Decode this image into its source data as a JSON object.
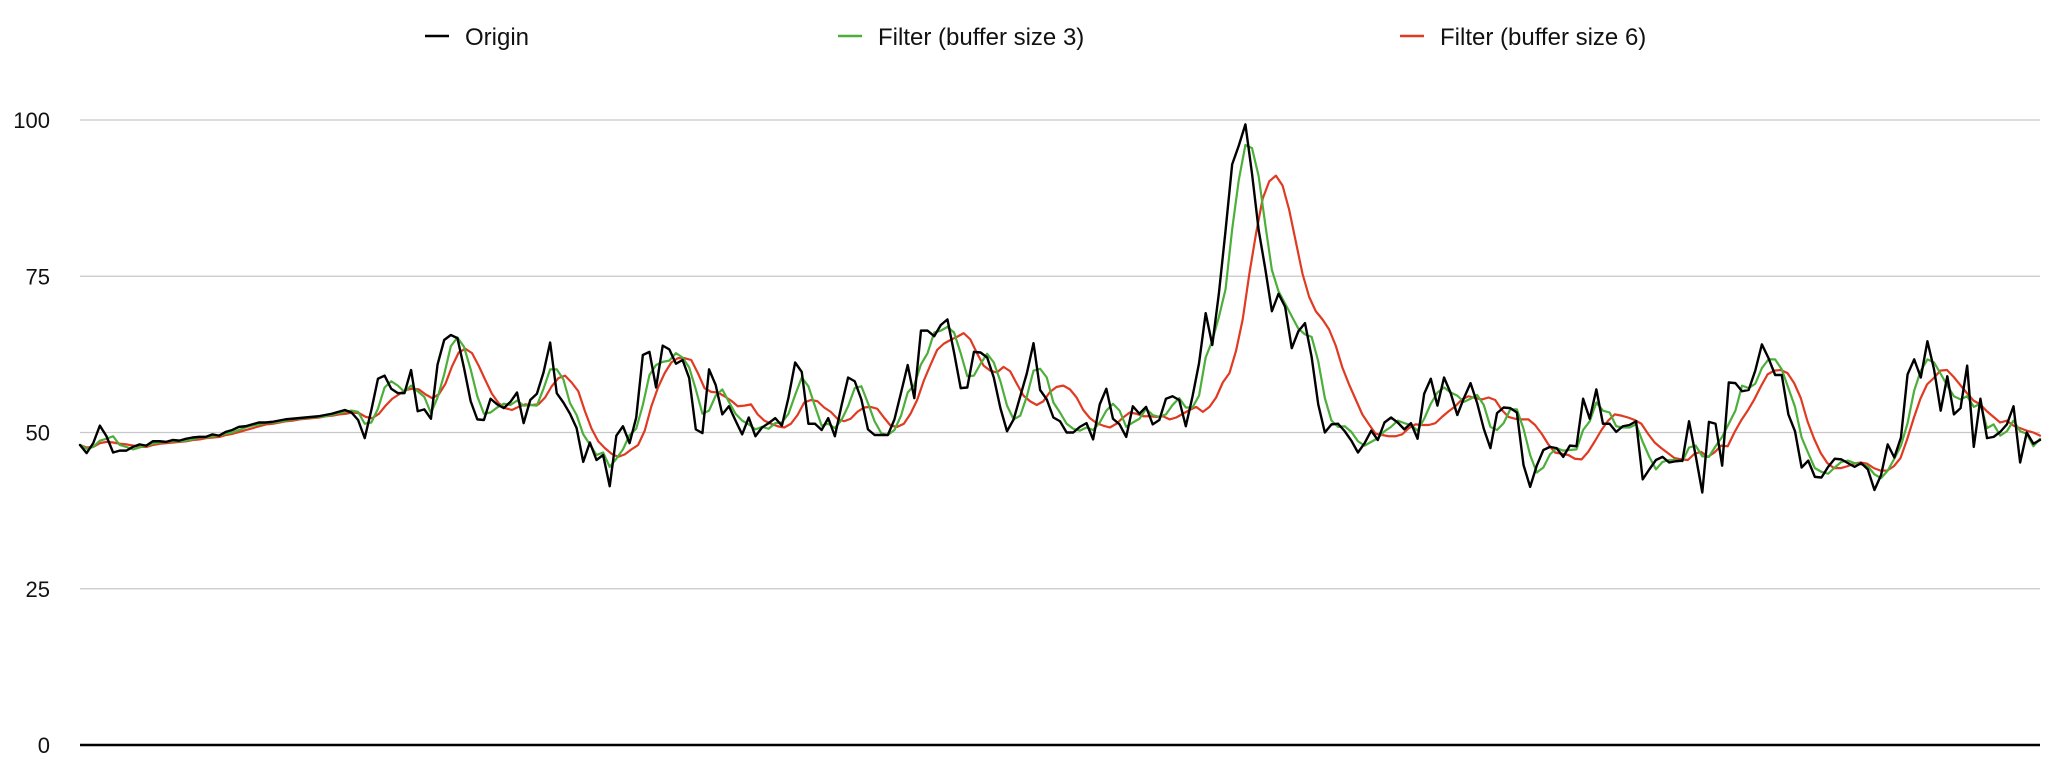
{
  "chart_data": {
    "type": "line",
    "title": "",
    "xlabel": "",
    "ylabel": "",
    "ylim": [
      0,
      100
    ],
    "yticks": [
      0,
      25,
      50,
      75,
      100
    ],
    "grid": true,
    "legend_position": "top",
    "series": [
      {
        "name": "Origin",
        "color": "#000000",
        "values": [
          48.0,
          46.7,
          48.3,
          51.1,
          49.4,
          46.8,
          47.1,
          47.1,
          47.7,
          48.1,
          47.9,
          48.6,
          48.6,
          48.5,
          48.8,
          48.7,
          49.0,
          49.2,
          49.3,
          49.3,
          49.7,
          49.5,
          50.1,
          50.4,
          50.9,
          51.0,
          51.3,
          51.6,
          51.6,
          51.7,
          51.9,
          52.1,
          52.2,
          52.3,
          52.4,
          52.5,
          52.6,
          52.8,
          53.0,
          53.3,
          53.6,
          53.2,
          52.0,
          49.1,
          53.6,
          58.6,
          59.1,
          57.0,
          56.3,
          56.3,
          60.0,
          53.4,
          53.7,
          52.2,
          60.9,
          64.8,
          65.6,
          65.1,
          60.3,
          55.0,
          52.1,
          52.0,
          55.4,
          54.5,
          53.9,
          54.9,
          56.4,
          51.5,
          55.2,
          56.2,
          59.6,
          64.4,
          56.3,
          54.8,
          53.0,
          50.7,
          45.3,
          48.4,
          45.6,
          46.4,
          41.4,
          49.5,
          51.0,
          48.3,
          52.4,
          62.4,
          62.9,
          57.2,
          63.9,
          63.3,
          61.0,
          61.6,
          58.7,
          50.5,
          49.9,
          60.1,
          57.6,
          52.9,
          54.2,
          51.9,
          49.7,
          52.4,
          49.4,
          50.8,
          51.5,
          52.3,
          51.1,
          55.6,
          61.2,
          59.7,
          51.4,
          51.4,
          50.4,
          52.3,
          49.4,
          54.3,
          58.8,
          58.2,
          55.3,
          50.5,
          49.6,
          49.6,
          49.6,
          52.1,
          56.4,
          60.8,
          55.5,
          66.3,
          66.3,
          65.4,
          67.2,
          68.1,
          62.8,
          57.1,
          57.2,
          62.9,
          62.8,
          62.0,
          58.8,
          53.9,
          50.2,
          52.1,
          55.8,
          59.5,
          64.3,
          56.8,
          55.3,
          52.4,
          51.8,
          50.0,
          50.0,
          50.9,
          51.5,
          48.9,
          54.5,
          57.0,
          52.2,
          51.3,
          49.3,
          54.2,
          53.0,
          54.1,
          51.3,
          52.0,
          55.4,
          55.8,
          55.2,
          51.0,
          55.7,
          61.1,
          69.1,
          64.0,
          72.3,
          82.3,
          92.9,
          95.9,
          99.3,
          91.4,
          82.4,
          76.2,
          69.4,
          72.2,
          70.1,
          63.5,
          66.2,
          67.5,
          62.1,
          54.5,
          50.0,
          51.3,
          51.4,
          50.2,
          48.7,
          46.8,
          48.3,
          50.3,
          48.8,
          51.6,
          52.4,
          51.6,
          50.5,
          51.5,
          49.0,
          56.2,
          58.6,
          54.3,
          58.8,
          56.3,
          52.8,
          55.5,
          57.9,
          54.7,
          50.6,
          47.5,
          53.1,
          54.0,
          53.9,
          53.2,
          44.8,
          41.3,
          44.7,
          47.2,
          47.7,
          47.5,
          46.1,
          47.9,
          47.8,
          55.4,
          52.2,
          56.9,
          51.4,
          51.4,
          50.1,
          51.0,
          51.2,
          51.8,
          42.5,
          44.1,
          45.6,
          46.1,
          45.2,
          45.4,
          45.5,
          51.8,
          46.3,
          40.4,
          51.7,
          51.4,
          44.7,
          58.0,
          57.9,
          56.6,
          56.8,
          59.9,
          64.1,
          61.9,
          59.2,
          59.2,
          52.9,
          50.2,
          44.4,
          45.5,
          42.9,
          42.8,
          44.5,
          45.8,
          45.7,
          45.1,
          44.5,
          45.1,
          44.1,
          40.8,
          43.2,
          48.1,
          46.0,
          49.2,
          59.3,
          61.7,
          58.8,
          64.6,
          60.1,
          53.5,
          59.0,
          52.9,
          53.9,
          60.7,
          47.7,
          55.4,
          49.1,
          49.3,
          50.1,
          51.3,
          54.2,
          45.2,
          50.0,
          48.2,
          48.8
        ]
      },
      {
        "name": "Filter (buffer size 3)",
        "color": "#4caf3a",
        "values": [
          48.0,
          47.4,
          47.7,
          48.7,
          49.0,
          49.4,
          48.0,
          47.7,
          47.3,
          47.6,
          47.9,
          48.2,
          48.4,
          48.5,
          48.6,
          48.6,
          48.7,
          48.9,
          49.2,
          49.2,
          49.4,
          49.5,
          49.8,
          50.0,
          50.4,
          50.8,
          51.1,
          51.3,
          51.5,
          51.6,
          51.7,
          51.9,
          52.1,
          52.2,
          52.3,
          52.4,
          52.5,
          52.6,
          52.8,
          53.1,
          53.3,
          53.5,
          53.3,
          51.4,
          51.6,
          53.8,
          57.2,
          58.2,
          57.5,
          56.5,
          57.5,
          56.6,
          55.7,
          53.1,
          55.6,
          59.3,
          63.8,
          65.2,
          63.7,
          60.1,
          55.8,
          53.0,
          53.2,
          54.0,
          54.6,
          54.4,
          55.1,
          54.3,
          54.4,
          54.3,
          57.0,
          60.1,
          60.1,
          58.5,
          54.7,
          52.8,
          49.7,
          48.1,
          46.4,
          46.8,
          44.5,
          45.8,
          47.3,
          49.6,
          50.6,
          54.4,
          59.2,
          60.8,
          61.3,
          61.5,
          62.7,
          62.0,
          60.4,
          56.9,
          53.0,
          53.5,
          55.9,
          56.9,
          54.9,
          53.0,
          51.9,
          51.3,
          50.5,
          50.9,
          50.6,
          51.5,
          51.6,
          53.0,
          56.0,
          58.8,
          57.4,
          54.2,
          51.1,
          51.4,
          50.7,
          52.0,
          54.2,
          57.1,
          57.4,
          54.7,
          51.8,
          49.9,
          49.6,
          50.4,
          52.7,
          56.4,
          57.6,
          60.9,
          62.7,
          66.0,
          66.3,
          66.9,
          66.0,
          62.7,
          59.0,
          59.1,
          61.0,
          62.6,
          61.2,
          58.2,
          54.3,
          52.1,
          52.7,
          55.8,
          59.9,
          60.2,
          58.8,
          54.8,
          53.2,
          51.4,
          50.6,
          50.3,
          50.8,
          50.4,
          51.6,
          53.5,
          54.6,
          53.5,
          50.9,
          51.6,
          52.2,
          53.8,
          52.8,
          52.5,
          52.9,
          54.4,
          55.5,
          54.0,
          54.0,
          55.9,
          62.0,
          64.7,
          68.5,
          72.9,
          82.5,
          90.4,
          96.0,
          95.5,
          91.0,
          83.3,
          76.0,
          72.6,
          70.6,
          68.6,
          66.6,
          65.7,
          65.3,
          61.4,
          55.5,
          51.9,
          50.9,
          51.0,
          50.1,
          48.6,
          47.9,
          48.5,
          49.1,
          50.2,
          50.9,
          51.9,
          51.5,
          51.2,
          50.3,
          52.2,
          54.6,
          56.4,
          57.2,
          56.4,
          55.9,
          54.9,
          55.4,
          56.0,
          54.4,
          50.9,
          50.4,
          51.5,
          53.7,
          53.7,
          50.6,
          46.4,
          43.6,
          44.4,
          46.5,
          47.5,
          47.1,
          47.2,
          47.3,
          50.4,
          51.8,
          54.8,
          53.5,
          53.2,
          51.0,
          50.8,
          50.8,
          51.3,
          48.5,
          46.1,
          44.1,
          45.3,
          45.6,
          45.6,
          45.4,
          47.6,
          47.9,
          46.2,
          46.1,
          47.8,
          49.3,
          51.4,
          53.5,
          57.5,
          57.1,
          57.8,
          60.3,
          61.7,
          61.7,
          60.1,
          57.1,
          54.1,
          49.2,
          46.7,
          44.3,
          43.7,
          43.4,
          44.4,
          45.3,
          45.5,
          45.1,
          44.9,
          44.6,
          43.3,
          42.7,
          43.9,
          45.8,
          47.9,
          51.5,
          56.7,
          59.9,
          61.7,
          61.2,
          59.4,
          57.5,
          55.8,
          55.3,
          55.8,
          54.1,
          54.6,
          50.7,
          51.3,
          49.5,
          50.2,
          51.9,
          50.2,
          49.8,
          47.8,
          49.0
        ]
      },
      {
        "name": "Filter (buffer size 6)",
        "color": "#e03a22",
        "values": [
          48.0,
          47.6,
          47.7,
          48.3,
          48.5,
          48.4,
          48.2,
          48.1,
          47.9,
          47.7,
          47.7,
          48.0,
          48.2,
          48.3,
          48.4,
          48.5,
          48.6,
          48.8,
          48.9,
          49.1,
          49.2,
          49.3,
          49.6,
          49.8,
          50.1,
          50.4,
          50.7,
          51.0,
          51.3,
          51.4,
          51.6,
          51.8,
          51.9,
          52.1,
          52.2,
          52.3,
          52.4,
          52.6,
          52.7,
          52.9,
          53.0,
          53.2,
          53.1,
          52.5,
          52.3,
          53.0,
          54.3,
          55.4,
          56.1,
          56.8,
          57.0,
          56.9,
          56.1,
          55.5,
          56.1,
          57.8,
          60.6,
          62.8,
          63.4,
          62.7,
          60.7,
          58.4,
          56.2,
          54.7,
          53.9,
          53.6,
          54.1,
          54.5,
          54.4,
          54.5,
          55.6,
          57.4,
          58.7,
          59.1,
          58.0,
          56.6,
          53.4,
          50.6,
          48.6,
          47.5,
          46.6,
          46.1,
          46.5,
          47.3,
          48.0,
          50.3,
          54.2,
          57.2,
          59.5,
          61.2,
          61.9,
          61.9,
          61.6,
          59.5,
          57.1,
          56.5,
          56.4,
          55.8,
          55.1,
          54.2,
          54.3,
          54.5,
          52.9,
          51.9,
          51.4,
          51.0,
          50.8,
          51.4,
          52.8,
          54.8,
          55.2,
          55.0,
          54.0,
          53.3,
          52.2,
          51.8,
          52.2,
          53.3,
          54.0,
          54.1,
          53.8,
          52.4,
          51.1,
          50.9,
          51.4,
          53.0,
          55.2,
          58.3,
          60.8,
          63.2,
          64.2,
          64.8,
          65.3,
          65.9,
          64.9,
          62.7,
          60.7,
          59.9,
          59.6,
          60.5,
          59.8,
          57.8,
          55.9,
          55.0,
          54.4,
          55.0,
          56.5,
          57.3,
          57.5,
          56.9,
          55.6,
          53.6,
          52.3,
          51.5,
          51.1,
          50.8,
          51.4,
          52.4,
          53.2,
          53.0,
          52.6,
          52.6,
          52.5,
          52.6,
          52.1,
          52.4,
          53.0,
          53.6,
          54.1,
          53.3,
          54.1,
          55.6,
          58.0,
          59.5,
          63.1,
          68.1,
          75.4,
          81.8,
          87.4,
          90.2,
          91.1,
          89.5,
          85.6,
          80.5,
          75.4,
          71.7,
          69.4,
          68.1,
          66.5,
          63.9,
          60.4,
          57.7,
          55.3,
          52.9,
          51.3,
          49.8,
          49.6,
          49.4,
          49.4,
          49.7,
          50.7,
          51.3,
          51.2,
          51.2,
          51.5,
          52.5,
          53.4,
          54.2,
          55.3,
          55.8,
          55.5,
          55.3,
          55.6,
          55.2,
          53.6,
          52.5,
          52.2,
          52.1,
          52.1,
          51.2,
          49.8,
          48.1,
          46.8,
          46.6,
          46.4,
          45.8,
          45.7,
          46.9,
          48.6,
          50.4,
          51.9,
          52.9,
          52.7,
          52.4,
          52.0,
          51.4,
          49.8,
          48.4,
          47.5,
          46.7,
          45.9,
          45.7,
          45.6,
          46.6,
          46.9,
          46.1,
          46.8,
          47.9,
          47.8,
          50.0,
          51.9,
          53.5,
          55.3,
          57.4,
          59.3,
          59.9,
          60.0,
          59.5,
          57.9,
          55.5,
          51.8,
          49.0,
          46.7,
          45.1,
          44.3,
          44.3,
          44.6,
          45.0,
          45.2,
          45.0,
          44.3,
          43.9,
          43.9,
          44.6,
          45.9,
          48.9,
          52.3,
          55.4,
          57.7,
          58.7,
          59.9,
          60.0,
          58.9,
          57.6,
          56.3,
          55.1,
          54.5,
          53.4,
          52.5,
          51.6,
          51.9,
          51.1,
          50.7,
          50.3,
          50.0,
          49.5
        ]
      }
    ]
  }
}
